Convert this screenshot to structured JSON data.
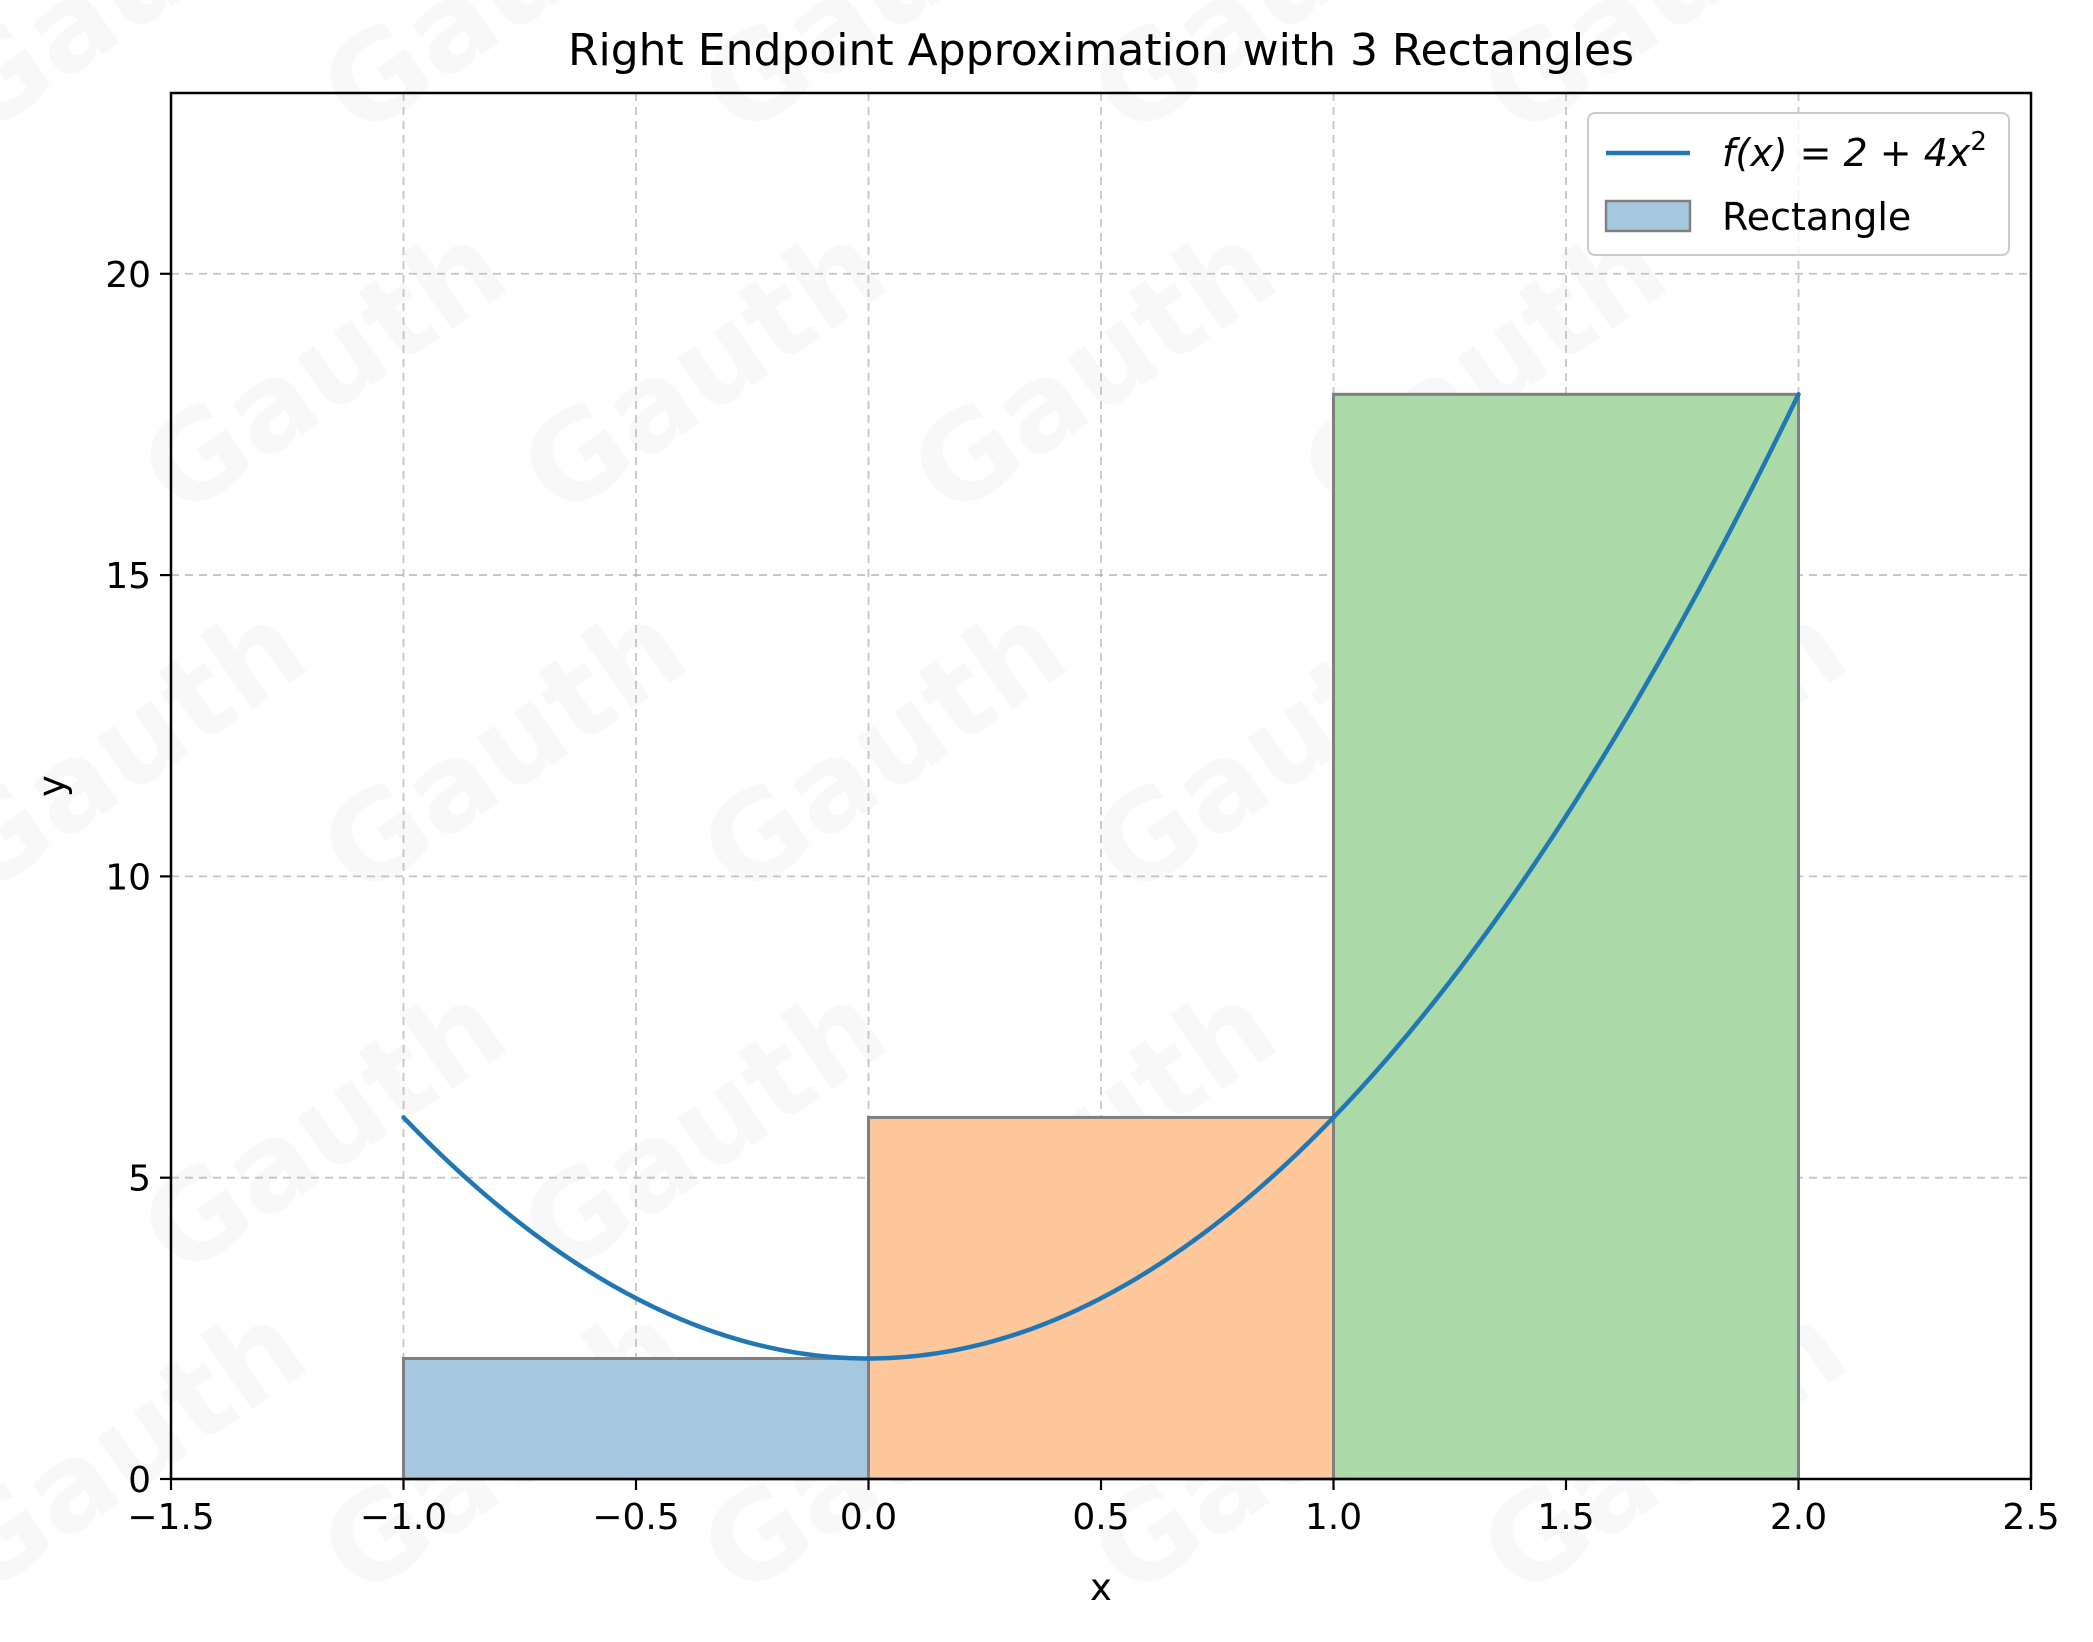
{
  "chart_data": {
    "type": "bar",
    "title": "Right Endpoint Approximation with 3 Rectangles",
    "xlabel": "x",
    "ylabel": "y",
    "xlim": [
      -1.5,
      2.5
    ],
    "ylim": [
      0,
      23
    ],
    "grid": true,
    "legend_position": "top-right",
    "x_ticks": [
      -1.5,
      -1.0,
      -0.5,
      0.0,
      0.5,
      1.0,
      1.5,
      2.0,
      2.5
    ],
    "x_tick_labels": [
      "−1.5",
      "−1.0",
      "−0.5",
      "0.0",
      "0.5",
      "1.0",
      "1.5",
      "2.0",
      "2.5"
    ],
    "y_ticks": [
      0,
      5,
      10,
      15,
      20
    ],
    "y_tick_labels": [
      "0",
      "5",
      "10",
      "15",
      "20"
    ],
    "curve": {
      "name": "f(x) = 2 + 4x²",
      "domain": [
        -1,
        2
      ],
      "coefficients": {
        "constant": 2,
        "x_squared": 4
      },
      "color": "#1f77b4"
    },
    "rectangles": [
      {
        "x_start": -1.0,
        "x_end": 0.0,
        "height": 2,
        "color": "#a6c8df"
      },
      {
        "x_start": 0.0,
        "x_end": 1.0,
        "height": 6,
        "color": "#fec89c"
      },
      {
        "x_start": 1.0,
        "x_end": 2.0,
        "height": 18,
        "color": "#abdaa8"
      }
    ],
    "legend": [
      {
        "label_main": "f(x) = 2 + 4x",
        "label_sup": "2",
        "kind": "line",
        "color": "#1f77b4"
      },
      {
        "label_main": "Rectangle",
        "label_sup": "",
        "kind": "patch",
        "color": "#a6c8df"
      }
    ],
    "watermark": "Gauth"
  }
}
